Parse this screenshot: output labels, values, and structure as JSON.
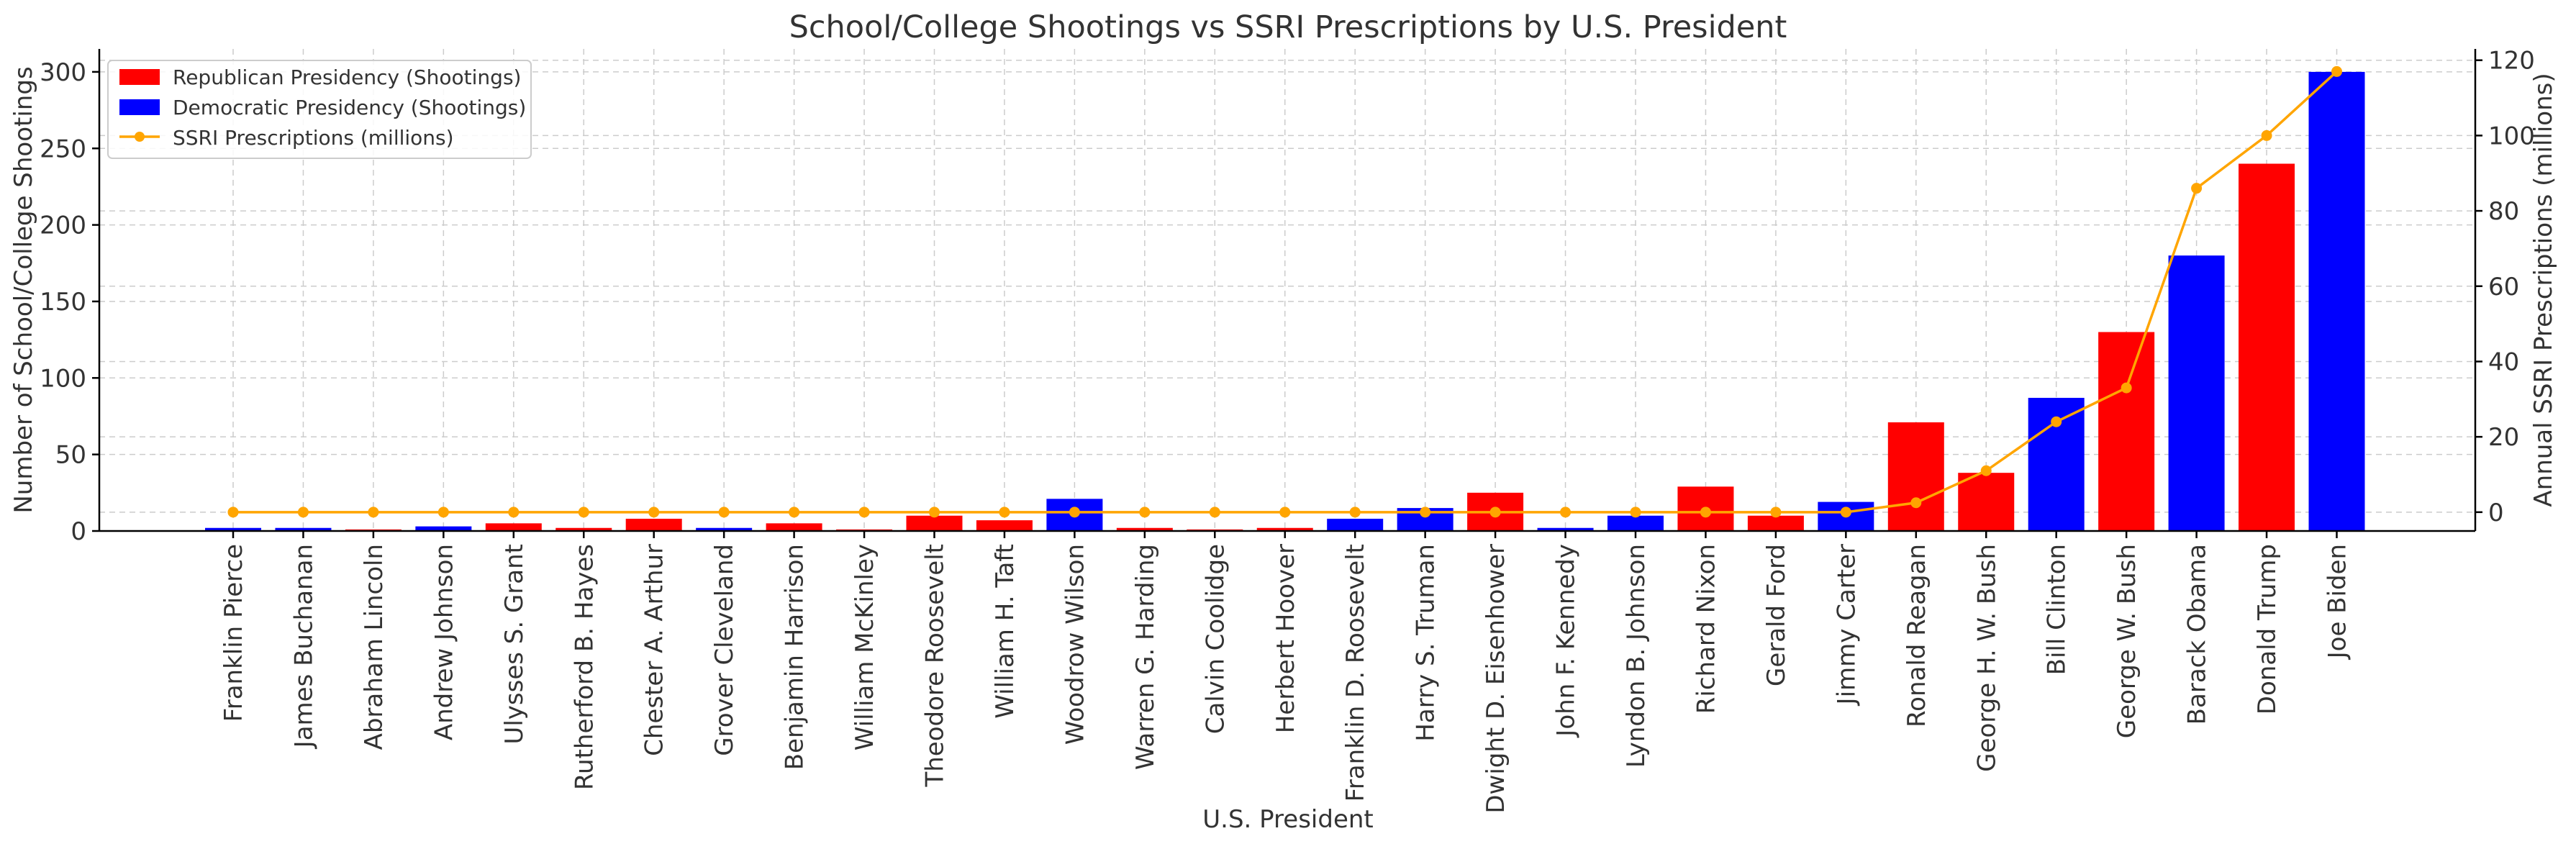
{
  "chart_data": {
    "type": "bar+line",
    "title": "School/College Shootings vs SSRI Prescriptions by U.S. President",
    "xlabel": "U.S. President",
    "ylabel": "Number of School/College Shootings",
    "y2label": "Annual SSRI Prescriptions (millions)",
    "ylim": [
      0,
      315
    ],
    "y2lim": [
      -5,
      123
    ],
    "yticks": [
      0,
      50,
      100,
      150,
      200,
      250,
      300
    ],
    "y2ticks": [
      0,
      20,
      40,
      60,
      80,
      100,
      120
    ],
    "grid": true,
    "legend_position": "top-left",
    "categories": [
      "Franklin Pierce",
      "James Buchanan",
      "Abraham Lincoln",
      "Andrew Johnson",
      "Ulysses S. Grant",
      "Rutherford B. Hayes",
      "Chester A. Arthur",
      "Grover Cleveland",
      "Benjamin Harrison",
      "William McKinley",
      "Theodore Roosevelt",
      "William H. Taft",
      "Woodrow Wilson",
      "Warren G. Harding",
      "Calvin Coolidge",
      "Herbert Hoover",
      "Franklin D. Roosevelt",
      "Harry S. Truman",
      "Dwight D. Eisenhower",
      "John F. Kennedy",
      "Lyndon B. Johnson",
      "Richard Nixon",
      "Gerald Ford",
      "Jimmy Carter",
      "Ronald Reagan",
      "George H. W. Bush",
      "Bill Clinton",
      "George W. Bush",
      "Barack Obama",
      "Donald Trump",
      "Joe Biden"
    ],
    "parties": [
      "D",
      "D",
      "R",
      "D",
      "R",
      "R",
      "R",
      "D",
      "R",
      "R",
      "R",
      "R",
      "D",
      "R",
      "R",
      "R",
      "D",
      "D",
      "R",
      "D",
      "D",
      "R",
      "R",
      "D",
      "R",
      "R",
      "D",
      "R",
      "D",
      "R",
      "D"
    ],
    "series": [
      {
        "name": "Republican Presidency (Shootings)",
        "kind": "bar",
        "axis": "left",
        "color": "#ff0000",
        "party": "R"
      },
      {
        "name": "Democratic Presidency (Shootings)",
        "kind": "bar",
        "axis": "left",
        "color": "#0000ff",
        "party": "D"
      },
      {
        "name": "SSRI Prescriptions (millions)",
        "kind": "line",
        "axis": "right",
        "color": "#ffa500",
        "values": [
          0,
          0,
          0,
          0,
          0,
          0,
          0,
          0,
          0,
          0,
          0,
          0,
          0,
          0,
          0,
          0,
          0,
          0,
          0,
          0,
          0,
          0,
          0,
          0,
          2.5,
          11,
          24,
          33,
          86,
          100,
          117
        ]
      }
    ],
    "shootings": [
      2,
      2,
      1,
      3,
      5,
      2,
      8,
      2,
      5,
      1,
      10,
      7,
      21,
      2,
      1,
      2,
      8,
      15,
      25,
      2,
      10,
      29,
      10,
      19,
      71,
      38,
      87,
      130,
      180,
      240,
      300
    ]
  }
}
